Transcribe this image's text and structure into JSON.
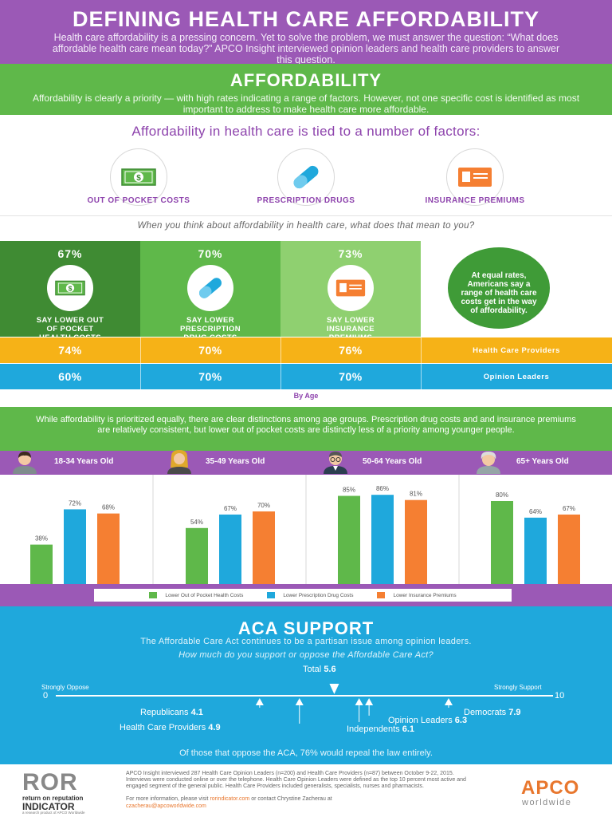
{
  "header": {
    "title": "DEFINING HEALTH CARE AFFORDABILITY",
    "subtitle": "Health care affordability is a pressing concern. Yet to solve the problem, we must answer the question: “What does affordable health care mean today?” APCO Insight interviewed opinion leaders and health care providers to answer this question."
  },
  "affordability": {
    "title": "AFFORDABILITY",
    "text": "Affordability is clearly a priority — with high rates indicating a range of factors. However, not one specific cost is identified as most important to address to make health care more affordable."
  },
  "factors": {
    "heading": "Affordability in health care is tied to a number of factors:",
    "items": [
      {
        "label": "OUT OF POCKET COSTS",
        "icon": "cash-icon"
      },
      {
        "label": "PRESCRIPTION DRUGS",
        "icon": "pill-icon"
      },
      {
        "label": "INSURANCE PREMIUMS",
        "icon": "id-card-icon"
      }
    ]
  },
  "question": "When you think about affordability in health care, what does that mean to you?",
  "overall": [
    {
      "pct": "67%",
      "label": "SAY LOWER OUT OF POCKET HEALTH COSTS",
      "color": "#3f8b33"
    },
    {
      "pct": "70%",
      "label": "SAY LOWER PRESCRIPTION DRUG COSTS",
      "color": "#5fb84a"
    },
    {
      "pct": "73%",
      "label": "SAY LOWER INSURANCE PREMIUMS",
      "color": "#8fd070"
    }
  ],
  "bubble": "At equal rates, Americans say a range of health care costs get in the way of affordability.",
  "rows": [
    {
      "label": "Health Care Providers",
      "values": [
        "74%",
        "70%",
        "76%"
      ],
      "color": "#f6b217"
    },
    {
      "label": "Opinion Leaders",
      "values": [
        "60%",
        "70%",
        "70%"
      ],
      "color": "#1fa8dc"
    }
  ],
  "by_age": "By Age",
  "age_intro": "While affordability is prioritized equally, there are clear distinctions among age groups. Prescription drug costs and and insurance premiums are relatively consistent, but lower out of pocket costs are distinctly less of a priority among younger people.",
  "chart_data": {
    "type": "bar",
    "categories": [
      "18-34 Years Old",
      "35-49 Years Old",
      "50-64 Years Old",
      "65+ Years Old"
    ],
    "series": [
      {
        "name": "Lower Out of Pocket Health Costs",
        "values": [
          38,
          54,
          85,
          80
        ],
        "color": "#5fb84a"
      },
      {
        "name": "Lower Prescription Drug Costs",
        "values": [
          72,
          67,
          86,
          64
        ],
        "color": "#1fa8dc"
      },
      {
        "name": "Lower Insurance Premiums",
        "values": [
          68,
          70,
          81,
          67
        ],
        "color": "#f57f32"
      }
    ],
    "ylim": [
      0,
      100
    ]
  },
  "aca": {
    "title": "ACA SUPPORT",
    "subtitle": "The Affordable Care Act continues to be a partisan issue among opinion leaders.",
    "question": "How much do you support or oppose the Affordable Care Act?",
    "scale_min_label": "Strongly Oppose",
    "scale_max_label": "Strongly Support",
    "scale_min": "0",
    "scale_max": "10",
    "total": {
      "label": "Total",
      "value": 5.6
    },
    "groups": [
      {
        "label": "Republicans",
        "value": 4.1
      },
      {
        "label": "Health Care Providers",
        "value": 4.9
      },
      {
        "label": "Independents",
        "value": 6.1
      },
      {
        "label": "Opinion Leaders",
        "value": 6.3
      },
      {
        "label": "Democrats",
        "value": 7.9
      }
    ],
    "footnote": "Of those that oppose the ACA, 76% would repeal the law entirely."
  },
  "footer": {
    "logo_text": "ROR",
    "logo_sub1": "return on reputation",
    "logo_sub2": "INDICATOR",
    "logo_sub3": "a research product of APCO Worldwide",
    "methodology": "APCO Insight interviewed 287 Health Care Opinion Leaders (n=200) and Health Care Providers (n=87) between October 9-22, 2015. Interviews were conducted online or over the telephone. Health Care Opinion Leaders were defined as the top 10 percent most active and engaged segment of the general public. Health Care Providers included generalists, specialists, nurses and pharmacists.",
    "contact_prefix": "For more information, please visit",
    "contact_url": "rorindicator.com",
    "contact_mid": "or contact Chrystine Zacherau at",
    "contact_email": "czacherau@apcoworldwide.com",
    "apco": "APCO",
    "worldwide": "worldwide"
  }
}
